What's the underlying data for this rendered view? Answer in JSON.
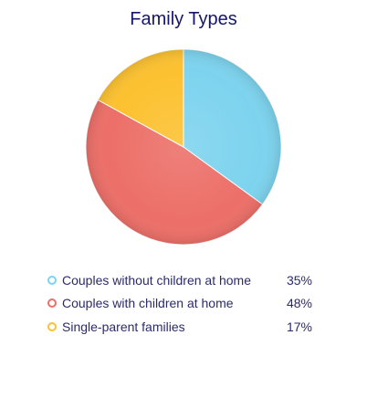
{
  "chart_data": {
    "type": "pie",
    "title": "Family Types",
    "categories": [
      "Couples without children at home",
      "Couples with children at home",
      "Single-parent families"
    ],
    "values": [
      35,
      48,
      17
    ],
    "value_labels": [
      "35%",
      "48%",
      "17%"
    ],
    "colors": [
      "#7dd3ee",
      "#ec6f68",
      "#fcc130"
    ],
    "legend_position": "bottom"
  }
}
